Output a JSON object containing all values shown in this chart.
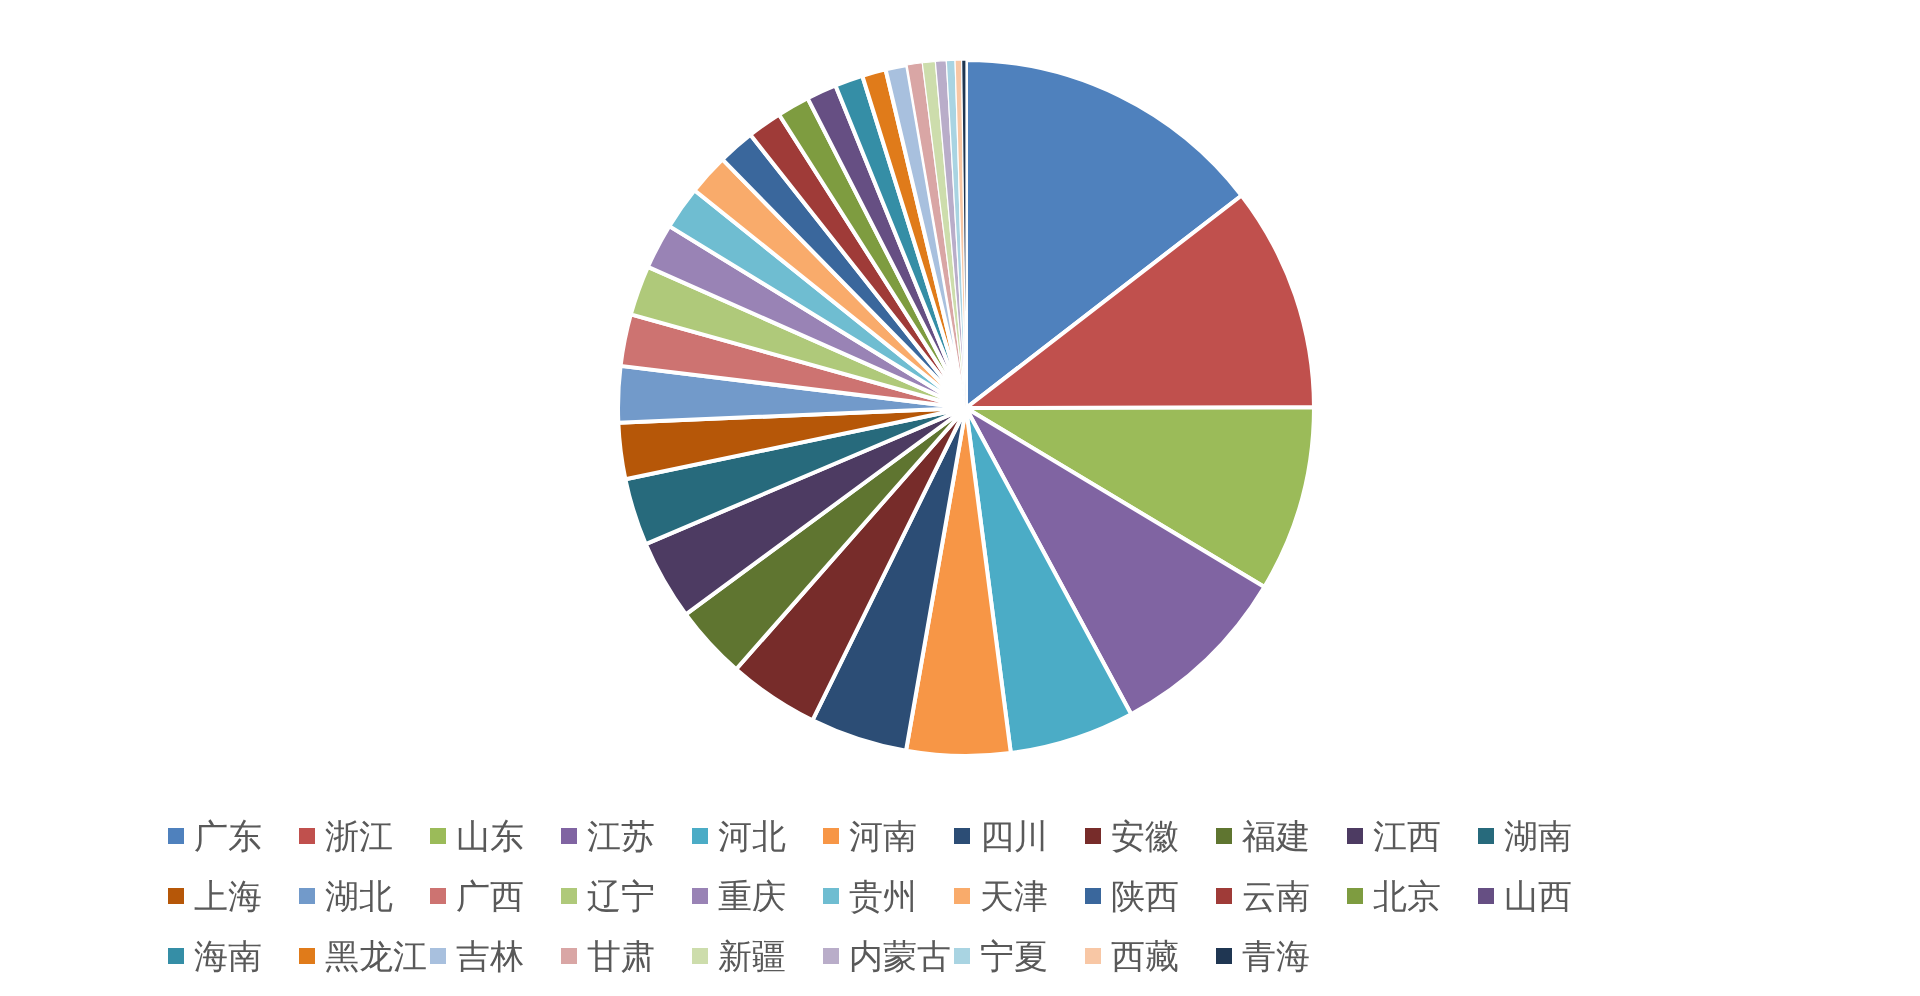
{
  "chart_data": {
    "type": "pie",
    "legend": "bottom",
    "categories": [
      "广东",
      "浙江",
      "山东",
      "江苏",
      "河北",
      "河南",
      "四川",
      "安徽",
      "福建",
      "江西",
      "湖南",
      "上海",
      "湖北",
      "广西",
      "辽宁",
      "重庆",
      "贵州",
      "天津",
      "陕西",
      "云南",
      "北京",
      "山西",
      "海南",
      "黑龙江",
      "吉林",
      "甘肃",
      "新疆",
      "内蒙古",
      "宁夏",
      "西藏",
      "青海"
    ],
    "values": [
      14.5,
      10.4,
      8.6,
      8.5,
      5.8,
      4.8,
      4.5,
      4.2,
      3.4,
      3.7,
      3.1,
      2.6,
      2.6,
      2.4,
      2.3,
      2.1,
      2.0,
      1.9,
      1.7,
      1.6,
      1.5,
      1.4,
      1.3,
      1.1,
      1.0,
      0.7,
      0.6,
      0.5,
      0.4,
      0.3,
      0.2
    ],
    "colors": [
      "#4f81bd",
      "#c0504d",
      "#9bbb59",
      "#8064a2",
      "#4bacc6",
      "#f79646",
      "#2c4d75",
      "#772c2a",
      "#5f7530",
      "#4d3b62",
      "#276a7c",
      "#b65708",
      "#729aca",
      "#cd7371",
      "#afc97a",
      "#9983b5",
      "#6fbdd1",
      "#f9ab6b",
      "#3a679c",
      "#9f3b38",
      "#7e9c40",
      "#664f83",
      "#358ea6",
      "#e07b1a",
      "#a8c0de",
      "#d9a6a5",
      "#cdddac",
      "#b9adc9",
      "#a9d4e2",
      "#f8c7a5",
      "#1f3652"
    ]
  }
}
